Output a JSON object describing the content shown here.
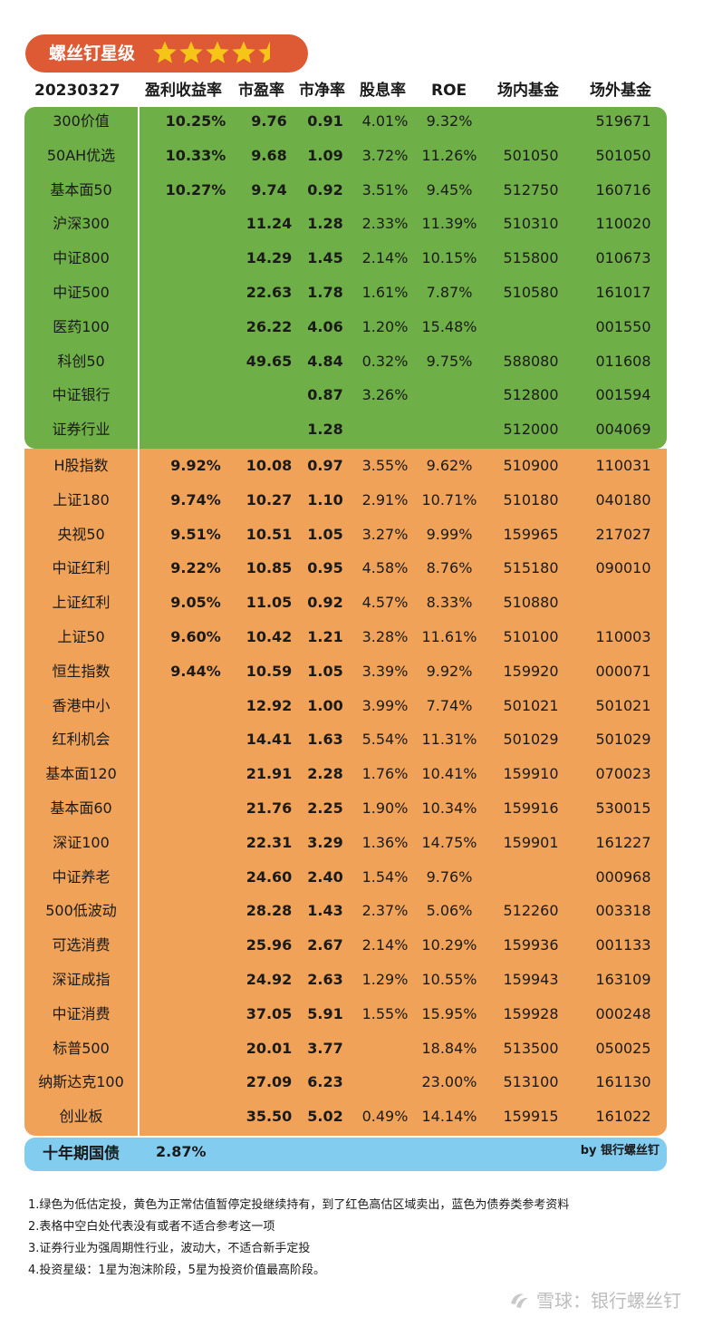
{
  "badge": {
    "title": "螺丝钉星级",
    "rating": 4.5,
    "max_rating": 5,
    "star_color": "#f5c518"
  },
  "header": {
    "date": "20230327",
    "col_ey": "盈利收益率",
    "col_pe": "市盈率",
    "col_pb": "市净率",
    "col_dy": "股息率",
    "col_roe": "ROE",
    "col_f1": "场内基金",
    "col_f2": "场外基金"
  },
  "colors": {
    "green": "#6faf47",
    "orange": "#f0a358",
    "blue": "#82ccf0",
    "badge": "#dd5a34"
  },
  "green_rows": [
    {
      "name": "300价值",
      "ey": "10.25%",
      "pe": "9.76",
      "pb": "0.91",
      "dy": "4.01%",
      "roe": "9.32%",
      "f1": "",
      "f2": "519671"
    },
    {
      "name": "50AH优选",
      "ey": "10.33%",
      "pe": "9.68",
      "pb": "1.09",
      "dy": "3.72%",
      "roe": "11.26%",
      "f1": "501050",
      "f2": "501050"
    },
    {
      "name": "基本面50",
      "ey": "10.27%",
      "pe": "9.74",
      "pb": "0.92",
      "dy": "3.51%",
      "roe": "9.45%",
      "f1": "512750",
      "f2": "160716"
    },
    {
      "name": "沪深300",
      "ey": "",
      "pe": "11.24",
      "pb": "1.28",
      "dy": "2.33%",
      "roe": "11.39%",
      "f1": "510310",
      "f2": "110020"
    },
    {
      "name": "中证800",
      "ey": "",
      "pe": "14.29",
      "pb": "1.45",
      "dy": "2.14%",
      "roe": "10.15%",
      "f1": "515800",
      "f2": "010673"
    },
    {
      "name": "中证500",
      "ey": "",
      "pe": "22.63",
      "pb": "1.78",
      "dy": "1.61%",
      "roe": "7.87%",
      "f1": "510580",
      "f2": "161017"
    },
    {
      "name": "医药100",
      "ey": "",
      "pe": "26.22",
      "pb": "4.06",
      "dy": "1.20%",
      "roe": "15.48%",
      "f1": "",
      "f2": "001550"
    },
    {
      "name": "科创50",
      "ey": "",
      "pe": "49.65",
      "pb": "4.84",
      "dy": "0.32%",
      "roe": "9.75%",
      "f1": "588080",
      "f2": "011608"
    },
    {
      "name": "中证银行",
      "ey": "",
      "pe": "",
      "pb": "0.87",
      "dy": "3.26%",
      "roe": "",
      "f1": "512800",
      "f2": "001594"
    },
    {
      "name": "证券行业",
      "ey": "",
      "pe": "",
      "pb": "1.28",
      "dy": "",
      "roe": "",
      "f1": "512000",
      "f2": "004069"
    }
  ],
  "orange_rows": [
    {
      "name": "H股指数",
      "ey": "9.92%",
      "pe": "10.08",
      "pb": "0.97",
      "dy": "3.55%",
      "roe": "9.62%",
      "f1": "510900",
      "f2": "110031"
    },
    {
      "name": "上证180",
      "ey": "9.74%",
      "pe": "10.27",
      "pb": "1.10",
      "dy": "2.91%",
      "roe": "10.71%",
      "f1": "510180",
      "f2": "040180"
    },
    {
      "name": "央视50",
      "ey": "9.51%",
      "pe": "10.51",
      "pb": "1.05",
      "dy": "3.27%",
      "roe": "9.99%",
      "f1": "159965",
      "f2": "217027"
    },
    {
      "name": "中证红利",
      "ey": "9.22%",
      "pe": "10.85",
      "pb": "0.95",
      "dy": "4.58%",
      "roe": "8.76%",
      "f1": "515180",
      "f2": "090010"
    },
    {
      "name": "上证红利",
      "ey": "9.05%",
      "pe": "11.05",
      "pb": "0.92",
      "dy": "4.57%",
      "roe": "8.33%",
      "f1": "510880",
      "f2": ""
    },
    {
      "name": "上证50",
      "ey": "9.60%",
      "pe": "10.42",
      "pb": "1.21",
      "dy": "3.28%",
      "roe": "11.61%",
      "f1": "510100",
      "f2": "110003"
    },
    {
      "name": "恒生指数",
      "ey": "9.44%",
      "pe": "10.59",
      "pb": "1.05",
      "dy": "3.39%",
      "roe": "9.92%",
      "f1": "159920",
      "f2": "000071"
    },
    {
      "name": "香港中小",
      "ey": "",
      "pe": "12.92",
      "pb": "1.00",
      "dy": "3.99%",
      "roe": "7.74%",
      "f1": "501021",
      "f2": "501021"
    },
    {
      "name": "红利机会",
      "ey": "",
      "pe": "14.41",
      "pb": "1.63",
      "dy": "5.54%",
      "roe": "11.31%",
      "f1": "501029",
      "f2": "501029"
    },
    {
      "name": "基本面120",
      "ey": "",
      "pe": "21.91",
      "pb": "2.28",
      "dy": "1.76%",
      "roe": "10.41%",
      "f1": "159910",
      "f2": "070023"
    },
    {
      "name": "基本面60",
      "ey": "",
      "pe": "21.76",
      "pb": "2.25",
      "dy": "1.90%",
      "roe": "10.34%",
      "f1": "159916",
      "f2": "530015"
    },
    {
      "name": "深证100",
      "ey": "",
      "pe": "22.31",
      "pb": "3.29",
      "dy": "1.36%",
      "roe": "14.75%",
      "f1": "159901",
      "f2": "161227"
    },
    {
      "name": "中证养老",
      "ey": "",
      "pe": "24.60",
      "pb": "2.40",
      "dy": "1.54%",
      "roe": "9.76%",
      "f1": "",
      "f2": "000968"
    },
    {
      "name": "500低波动",
      "ey": "",
      "pe": "28.28",
      "pb": "1.43",
      "dy": "2.37%",
      "roe": "5.06%",
      "f1": "512260",
      "f2": "003318"
    },
    {
      "name": "可选消费",
      "ey": "",
      "pe": "25.96",
      "pb": "2.67",
      "dy": "2.14%",
      "roe": "10.29%",
      "f1": "159936",
      "f2": "001133"
    },
    {
      "name": "深证成指",
      "ey": "",
      "pe": "24.92",
      "pb": "2.63",
      "dy": "1.29%",
      "roe": "10.55%",
      "f1": "159943",
      "f2": "163109"
    },
    {
      "name": "中证消费",
      "ey": "",
      "pe": "37.05",
      "pb": "5.91",
      "dy": "1.55%",
      "roe": "15.95%",
      "f1": "159928",
      "f2": "000248"
    },
    {
      "name": "标普500",
      "ey": "",
      "pe": "20.01",
      "pb": "3.77",
      "dy": "",
      "roe": "18.84%",
      "f1": "513500",
      "f2": "050025"
    },
    {
      "name": "纳斯达克100",
      "ey": "",
      "pe": "27.09",
      "pb": "6.23",
      "dy": "",
      "roe": "23.00%",
      "f1": "513100",
      "f2": "161130"
    },
    {
      "name": "创业板",
      "ey": "",
      "pe": "35.50",
      "pb": "5.02",
      "dy": "0.49%",
      "roe": "14.14%",
      "f1": "159915",
      "f2": "161022"
    }
  ],
  "bond": {
    "name": "十年期国债",
    "yield": "2.87%",
    "byline": "by 银行螺丝钉"
  },
  "notes": [
    "1.绿色为低估定投，黄色为正常估值暂停定投继续持有，到了红色高估区域卖出，蓝色为债券类参考资料",
    "2.表格中空白处代表没有或者不适合参考这一项",
    "3.证券行业为强周期性行业，波动大，不适合新手定投",
    "4.投资星级：1星为泡沫阶段，5星为投资价值最高阶段。"
  ],
  "watermark": "雪球：银行螺丝钉"
}
